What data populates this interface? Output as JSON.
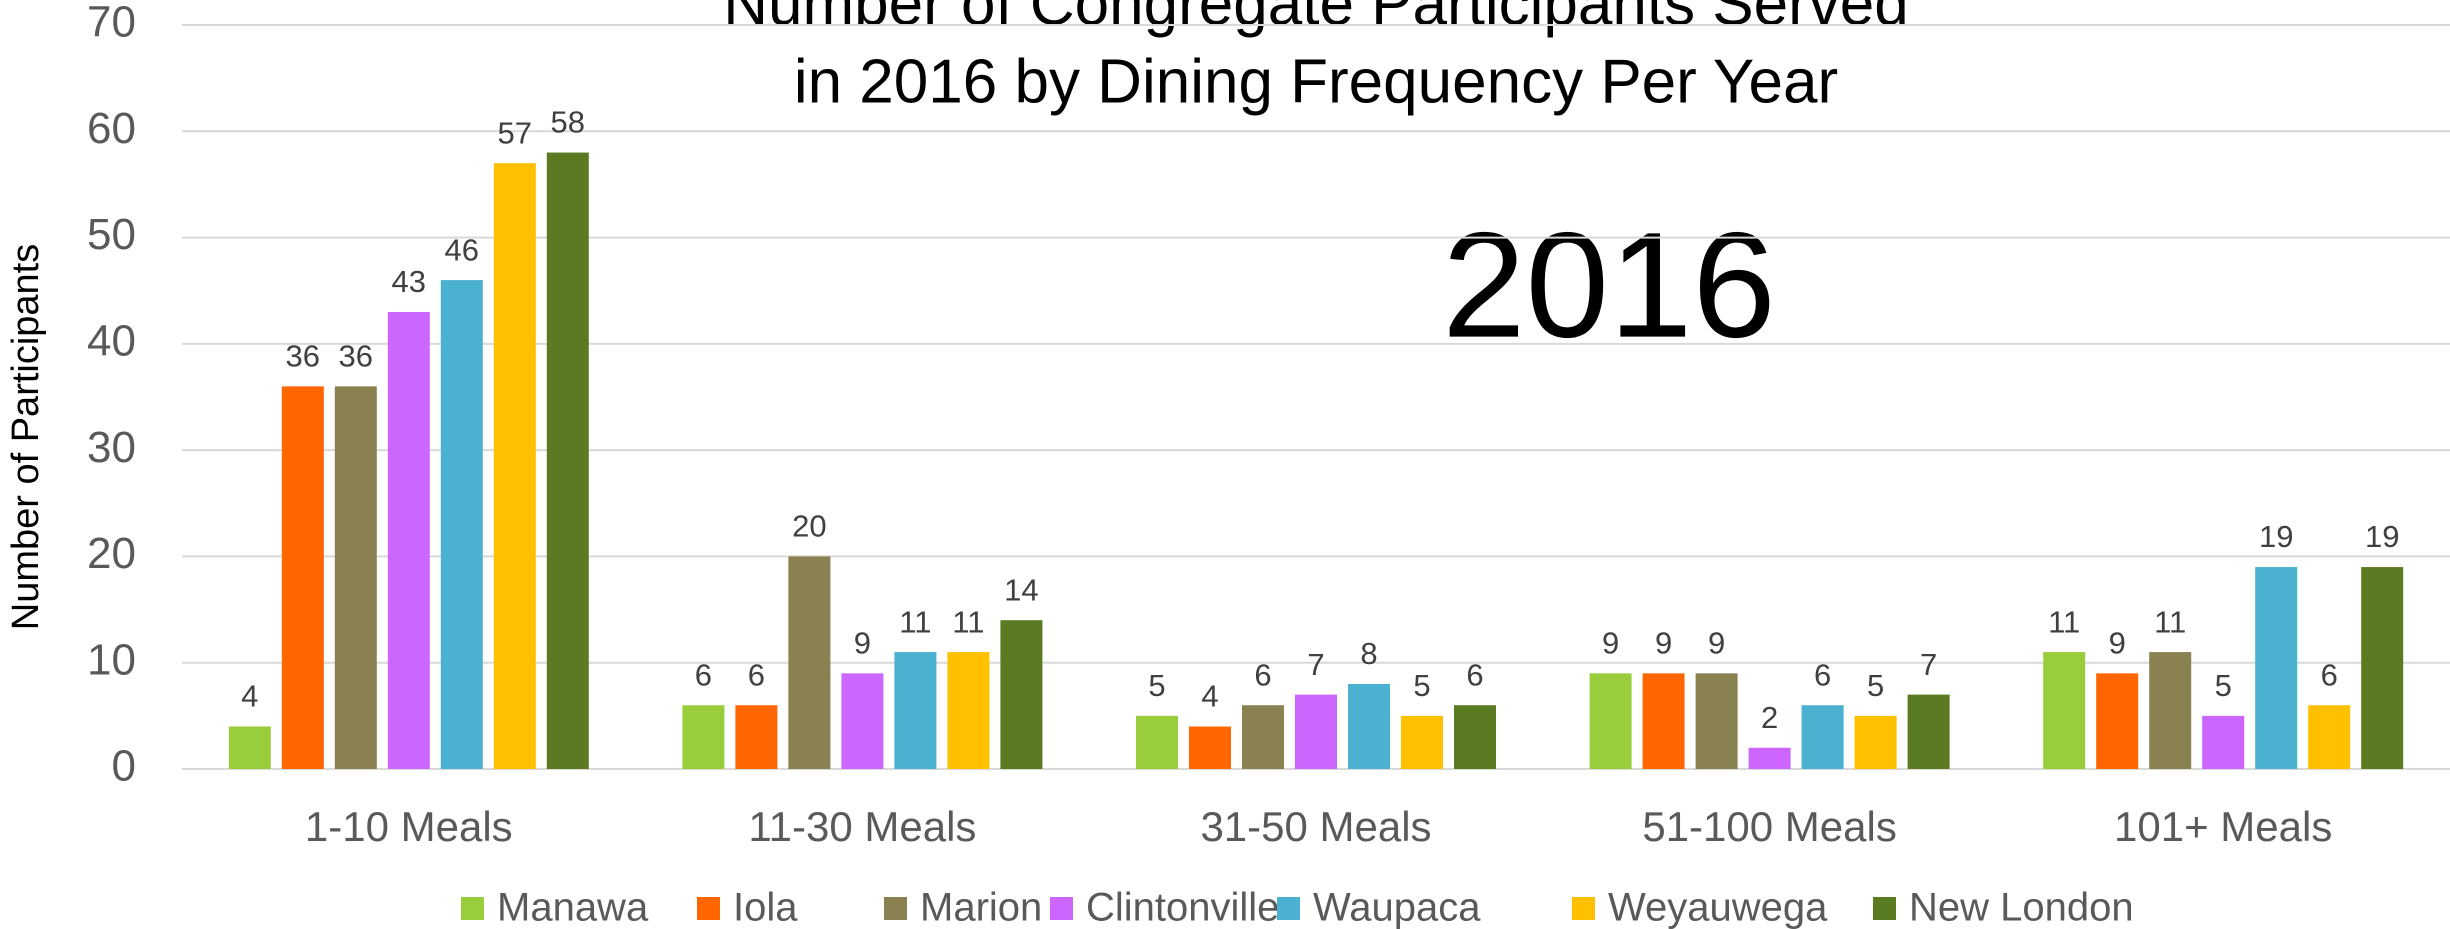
{
  "chart_data": {
    "type": "bar",
    "title": [
      "Number of Congregate Participants Served",
      "in 2016 by Dining Frequency Per Year"
    ],
    "annotation": "2016",
    "y_label": "Number of Participants",
    "categories": [
      "1-10 Meals",
      "11-30 Meals",
      "31-50 Meals",
      "51-100 Meals",
      "101+ Meals"
    ],
    "series": [
      {
        "name": "Manawa",
        "color": "#9acd3c",
        "values": [
          4,
          6,
          5,
          9,
          11
        ]
      },
      {
        "name": "Iola",
        "color": "#ff6600",
        "values": [
          36,
          6,
          4,
          9,
          9
        ]
      },
      {
        "name": "Marion",
        "color": "#8a8150",
        "values": [
          36,
          20,
          6,
          9,
          11
        ]
      },
      {
        "name": "Clintonville",
        "color": "#cc66ff",
        "values": [
          43,
          9,
          7,
          2,
          5
        ]
      },
      {
        "name": "Waupaca",
        "color": "#4bb1d0",
        "values": [
          46,
          11,
          8,
          6,
          19
        ]
      },
      {
        "name": "Weyauwega",
        "color": "#ffc000",
        "values": [
          57,
          11,
          5,
          5,
          6
        ]
      },
      {
        "name": "New London",
        "color": "#5b7b22",
        "values": [
          58,
          14,
          6,
          7,
          19
        ]
      }
    ],
    "ylim": [
      0,
      70
    ],
    "yticks": [
      0,
      10,
      20,
      30,
      40,
      50,
      60,
      70
    ],
    "grid": true,
    "legend": "bottom"
  }
}
